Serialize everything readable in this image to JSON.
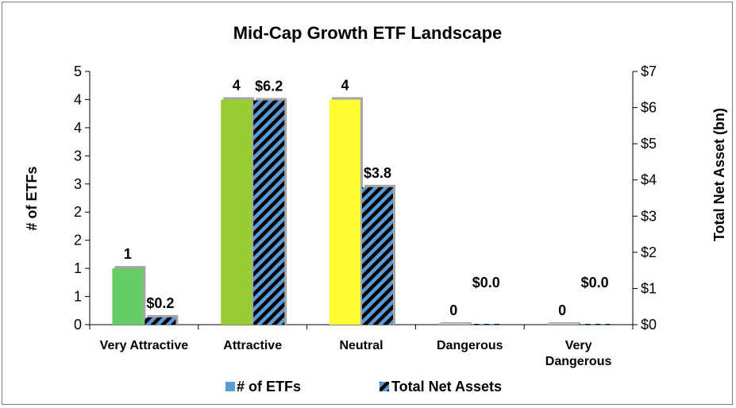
{
  "chart_data": {
    "type": "bar",
    "title": "Mid-Cap Growth ETF Landscape",
    "categories": [
      "Very Attractive",
      "Attractive",
      "Neutral",
      "Dangerous",
      "Very Dangerous"
    ],
    "category_lines": [
      [
        "Very Attractive"
      ],
      [
        "Attractive"
      ],
      [
        "Neutral"
      ],
      [
        "Dangerous"
      ],
      [
        "Very",
        "Dangerous"
      ]
    ],
    "category_colors": [
      "#66cc66",
      "#99cc33",
      "#ffff33",
      "#bfbfbf",
      "#bfbfbf"
    ],
    "series": [
      {
        "name": "# of ETFs",
        "axis": "left",
        "values": [
          1,
          4,
          4,
          0,
          0
        ],
        "labels": [
          "1",
          "4",
          "4",
          "0",
          "0"
        ],
        "legend_color": "#5b9bd5"
      },
      {
        "name": "Total Net Assets",
        "axis": "right",
        "values": [
          0.2,
          6.2,
          3.8,
          0.0,
          0.0
        ],
        "labels": [
          "$0.2",
          "$6.2",
          "$3.8",
          "$0.0",
          "$0.0"
        ],
        "fill_color": "#5b9bd5",
        "stripe_color": "#000000"
      }
    ],
    "y_left": {
      "label": "# of ETFs",
      "range": [
        0,
        4.5
      ],
      "ticks": [
        0,
        0.5,
        1,
        1.5,
        2,
        2.5,
        3,
        3.5,
        4,
        4.5
      ],
      "tick_labels": [
        "0",
        "1",
        "1",
        "2",
        "2",
        "3",
        "3",
        "4",
        "4",
        "5"
      ]
    },
    "y_right": {
      "label": "Total Net Asset (bn)",
      "range": [
        0,
        7
      ],
      "ticks": [
        0,
        1,
        2,
        3,
        4,
        5,
        6,
        7
      ],
      "tick_labels": [
        "$0",
        "$1",
        "$2",
        "$3",
        "$4",
        "$5",
        "$6",
        "$7"
      ]
    },
    "grid": false,
    "legend_position": "bottom"
  }
}
